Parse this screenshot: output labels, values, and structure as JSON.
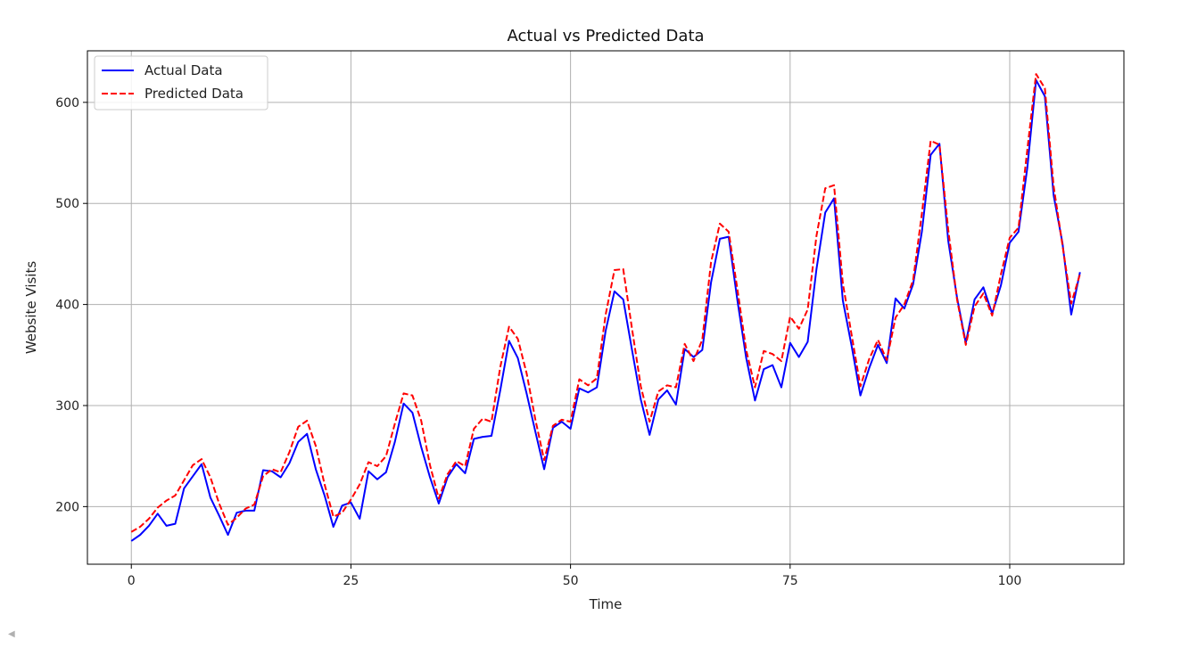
{
  "chart_data": {
    "type": "line",
    "title": "Actual vs Predicted Data",
    "xlabel": "Time",
    "ylabel": "Website Visits",
    "xlim": [
      -5,
      113
    ],
    "ylim": [
      143,
      651
    ],
    "xticks": [
      0,
      25,
      50,
      75,
      100
    ],
    "yticks": [
      200,
      300,
      400,
      500,
      600
    ],
    "grid": true,
    "legend_position": "upper-left",
    "series": [
      {
        "name": "Actual Data",
        "color": "#0000ff",
        "style": "solid",
        "values": [
          166,
          172,
          181,
          193,
          181,
          183,
          218,
          230,
          242,
          209,
          191,
          172,
          194,
          196,
          196,
          236,
          235,
          229,
          243,
          264,
          272,
          237,
          211,
          180,
          201,
          204,
          188,
          235,
          227,
          234,
          264,
          302,
          293,
          259,
          229,
          203,
          229,
          242,
          233,
          267,
          269,
          270,
          315,
          364,
          347,
          312,
          274,
          237,
          278,
          284,
          277,
          317,
          313,
          318,
          374,
          413,
          405,
          355,
          306,
          271,
          306,
          315,
          301,
          356,
          348,
          355,
          422,
          465,
          467,
          404,
          347,
          305,
          336,
          340,
          318,
          362,
          348,
          363,
          435,
          491,
          505,
          404,
          359,
          310,
          337,
          360,
          342,
          406,
          396,
          420,
          472,
          548,
          559,
          463,
          407,
          362,
          405,
          417,
          391,
          419,
          461,
          472,
          535,
          622,
          606,
          508,
          461,
          390,
          432
        ]
      },
      {
        "name": "Predicted Data",
        "color": "#ff0000",
        "style": "dashed",
        "values": [
          175,
          180,
          188,
          199,
          206,
          211,
          226,
          241,
          247,
          229,
          203,
          182,
          189,
          198,
          202,
          230,
          237,
          234,
          254,
          279,
          285,
          260,
          222,
          190,
          194,
          207,
          222,
          244,
          240,
          250,
          282,
          312,
          310,
          285,
          241,
          208,
          232,
          245,
          240,
          277,
          287,
          284,
          338,
          378,
          366,
          332,
          286,
          246,
          280,
          286,
          284,
          326,
          320,
          327,
          390,
          434,
          435,
          376,
          319,
          284,
          314,
          320,
          318,
          361,
          344,
          365,
          442,
          480,
          472,
          415,
          355,
          318,
          354,
          351,
          344,
          388,
          376,
          395,
          468,
          515,
          518,
          421,
          370,
          319,
          346,
          365,
          345,
          387,
          400,
          424,
          490,
          562,
          558,
          474,
          405,
          360,
          398,
          411,
          389,
          430,
          466,
          476,
          553,
          628,
          614,
          517,
          459,
          401,
          430
        ]
      }
    ]
  }
}
